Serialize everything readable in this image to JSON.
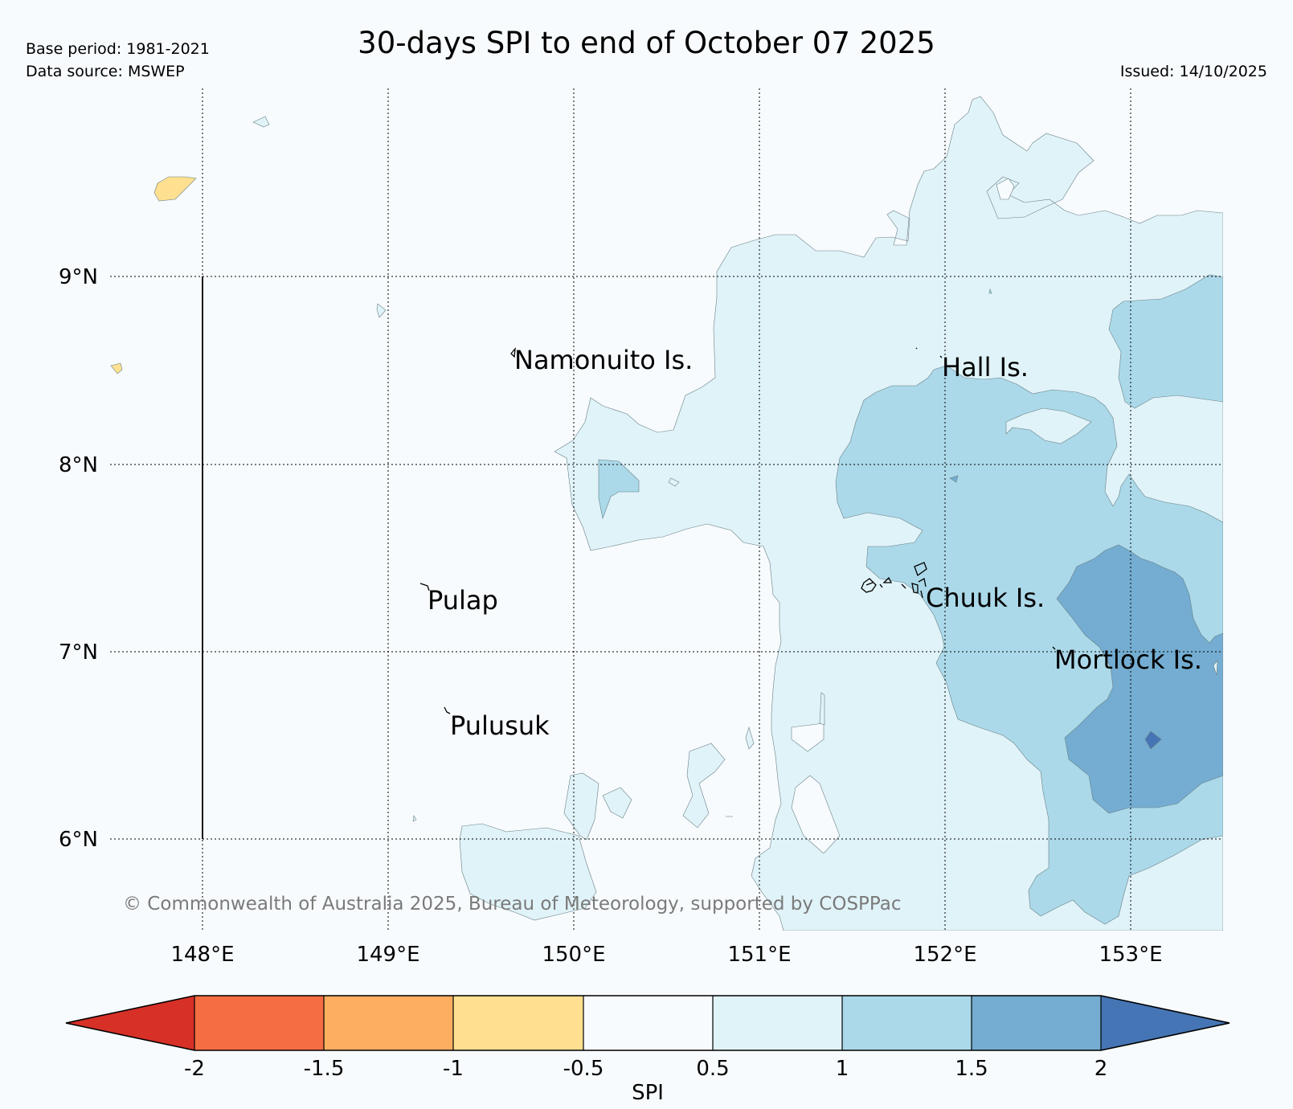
{
  "header": {
    "title": "30-days SPI to end of October 07 2025",
    "base_period": "Base period: 1981-2021",
    "data_source": "Data source: MSWEP",
    "issued": "Issued: 14/10/2025"
  },
  "map": {
    "lon_ticks": [
      "148°E",
      "149°E",
      "150°E",
      "151°E",
      "152°E",
      "153°E"
    ],
    "lat_ticks": [
      "9°N",
      "8°N",
      "7°N",
      "6°N"
    ],
    "places": {
      "namonuito": "Namonuito Is.",
      "hall": "Hall Is.",
      "pulap": "Pulap",
      "chuuk": "Chuuk Is.",
      "mortlock": "Mortlock Is.",
      "pulusuk": "Pulusuk"
    },
    "copyright": "© Commonwealth of Australia 2025, Bureau of Meteorology, supported by COSPPac",
    "colors": {
      "spi_0_5_to_1": "#e0f3f8",
      "spi_1_to_1_5": "#abd9e9",
      "spi_1_5_to_2": "#74add1",
      "spi_gt_2": "#4575b4",
      "spi_m1_to_m0_5": "#fee090"
    }
  },
  "colorbar": {
    "label": "SPI",
    "ticks": [
      "-2",
      "-1.5",
      "-1",
      "-0.5",
      "0.5",
      "1",
      "1.5",
      "2"
    ],
    "colors": [
      "#d73027",
      "#f46d43",
      "#fdae61",
      "#fee090",
      "#f7fbfd",
      "#e0f3f8",
      "#abd9e9",
      "#74add1",
      "#4575b4"
    ]
  }
}
